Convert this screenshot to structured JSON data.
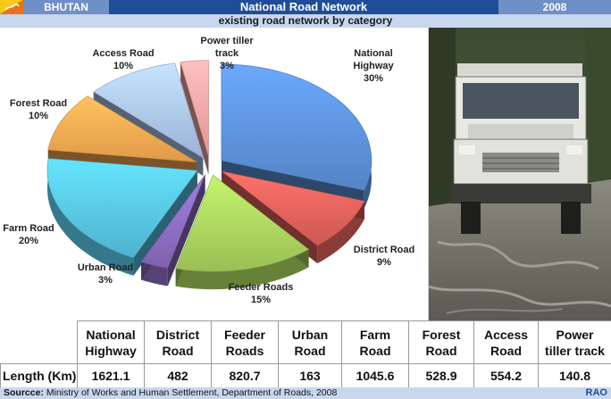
{
  "header": {
    "country": "BHUTAN",
    "title": "National Road Network",
    "year": "2008",
    "subtitle": "existing road network by category"
  },
  "chart_data": {
    "type": "pie",
    "title": "existing road network by category",
    "categories": [
      "National Highway",
      "District Road",
      "Feeder Roads",
      "Urban Road",
      "Farm Road",
      "Forest Road",
      "Access Road",
      "Power tiller track"
    ],
    "label_lines": [
      [
        "National",
        "Highway",
        "30%"
      ],
      [
        "District Road",
        "9%"
      ],
      [
        "Feeder Roads",
        "15%"
      ],
      [
        "Urban Road",
        "3%"
      ],
      [
        "Farm Road",
        "20%"
      ],
      [
        "Forest Road",
        "10%"
      ],
      [
        "Access Road",
        "10%"
      ],
      [
        "Power tiller",
        "track",
        "3%"
      ]
    ],
    "values": [
      30,
      9,
      15,
      3,
      20,
      10,
      10,
      3
    ],
    "colors": [
      "#5b8fd6",
      "#e0605a",
      "#a7d05c",
      "#8a6bbf",
      "#56c2e0",
      "#f5a650",
      "#a9c2ea",
      "#f2a3a3"
    ],
    "legend": "none",
    "style": "exploded-3d"
  },
  "table": {
    "headers": [
      [
        "National",
        "Highway"
      ],
      [
        "District",
        "Road"
      ],
      [
        "Feeder",
        "Roads"
      ],
      [
        "Urban",
        "Road"
      ],
      [
        "Farm",
        "Road"
      ],
      [
        "Forest",
        "Road"
      ],
      [
        "Access",
        "Road"
      ],
      [
        "Power",
        "tiller track"
      ]
    ],
    "row_label": "Length (Km)",
    "values": [
      "1621.1",
      "482",
      "820.7",
      "163",
      "1045.6",
      "528.9",
      "554.2",
      "140.8"
    ]
  },
  "footer": {
    "source_label": "Sourcce:",
    "source_text": "Ministry of Works and Human Settlement, Department of Roads, 2008",
    "brand": "RAO"
  }
}
